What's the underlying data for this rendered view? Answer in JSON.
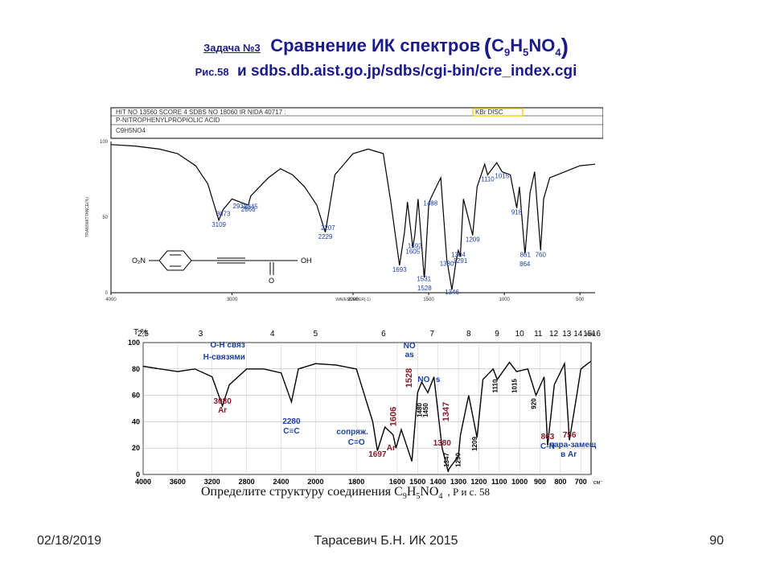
{
  "header": {
    "task_label": "Задача №3",
    "title": "Сравнение ИК спектров",
    "formula_open": "(",
    "formula_c": "C",
    "formula_c_sub": "9",
    "formula_h": "H",
    "formula_h_sub": "5",
    "formula_no": "NO",
    "formula_o_sub": "4",
    "formula_close": ")",
    "fig_label": "Рис.58",
    "source": "и sdbs.db.aist.go.jp/sdbs/cgi-bin/cre_index.cgi"
  },
  "sdbs_header": {
    "row1": "HIT NO 13560   SCORE  4    SDBS NO 18060    IR NIDA 40717 :",
    "row1_tag": "KBr DISC",
    "row2": "P-NITROPHENYLPROPIOLIC ACID",
    "row3": "C9H5NO4"
  },
  "footer": {
    "date": "02/18/2019",
    "author": "Тарасевич Б.Н.  ИК 2015",
    "page": "90"
  },
  "task_caption": {
    "text": "Определите структуру соединения C",
    "c_sub": "9",
    "h": "H",
    "h_sub": "5",
    "no": "NO",
    "o_sub": "4",
    "fig": ", Р и с. 58"
  },
  "structure": {
    "o2n": "O₂N",
    "oh": "OH",
    "o": "O"
  },
  "chart_data": [
    {
      "type": "line",
      "name_in_image": "SDBS IR spectrum",
      "xlabel": "WAVENUMBER(-1)",
      "ylabel": "TRANSMITTANCE(%)",
      "xlim": [
        4000,
        400
      ],
      "ylim": [
        0,
        100
      ],
      "x_tick_labels": [
        "4000",
        "3000",
        "2000",
        "1500",
        "1000",
        "500"
      ],
      "y_tick_labels": [
        "100",
        "50",
        "0"
      ],
      "color": "#000000",
      "label_color": "#1a3fa8",
      "points": [
        [
          4000,
          98
        ],
        [
          3800,
          97
        ],
        [
          3600,
          95
        ],
        [
          3450,
          92
        ],
        [
          3300,
          84
        ],
        [
          3200,
          72
        ],
        [
          3109,
          48
        ],
        [
          3073,
          55
        ],
        [
          3000,
          62
        ],
        [
          2934,
          60
        ],
        [
          2866,
          58
        ],
        [
          2845,
          64
        ],
        [
          2700,
          76
        ],
        [
          2600,
          82
        ],
        [
          2500,
          78
        ],
        [
          2400,
          70
        ],
        [
          2300,
          58
        ],
        [
          2229,
          40
        ],
        [
          2207,
          50
        ],
        [
          2150,
          78
        ],
        [
          2000,
          92
        ],
        [
          1900,
          95
        ],
        [
          1800,
          92
        ],
        [
          1750,
          60
        ],
        [
          1693,
          18
        ],
        [
          1660,
          40
        ],
        [
          1640,
          60
        ],
        [
          1605,
          30
        ],
        [
          1592,
          38
        ],
        [
          1570,
          62
        ],
        [
          1531,
          12
        ],
        [
          1528,
          10
        ],
        [
          1500,
          58
        ],
        [
          1488,
          62
        ],
        [
          1450,
          70
        ],
        [
          1420,
          76
        ],
        [
          1380,
          22
        ],
        [
          1350,
          4
        ],
        [
          1346,
          2
        ],
        [
          1320,
          20
        ],
        [
          1304,
          28
        ],
        [
          1291,
          24
        ],
        [
          1270,
          62
        ],
        [
          1209,
          38
        ],
        [
          1180,
          70
        ],
        [
          1130,
          85
        ],
        [
          1110,
          78
        ],
        [
          1050,
          86
        ],
        [
          1015,
          80
        ],
        [
          960,
          78
        ],
        [
          918,
          56
        ],
        [
          900,
          70
        ],
        [
          864,
          26
        ],
        [
          861,
          28
        ],
        [
          830,
          66
        ],
        [
          800,
          80
        ],
        [
          760,
          28
        ],
        [
          740,
          62
        ],
        [
          700,
          76
        ],
        [
          600,
          80
        ],
        [
          500,
          84
        ],
        [
          400,
          85
        ]
      ],
      "labels": [
        [
          "3109",
          3109
        ],
        [
          "3073",
          3073
        ],
        [
          "2934",
          2934
        ],
        [
          "2866",
          2866
        ],
        [
          "2845",
          2845
        ],
        [
          "2229",
          2229
        ],
        [
          "2207",
          2207
        ],
        [
          "1693",
          1693
        ],
        [
          "1605",
          1605
        ],
        [
          "1592",
          1592
        ],
        [
          "1531",
          1531
        ],
        [
          "1528",
          1528
        ],
        [
          "1488",
          1488
        ],
        [
          "1380",
          1380
        ],
        [
          "1346",
          1346
        ],
        [
          "1304",
          1304
        ],
        [
          "1291",
          1291
        ],
        [
          "1209",
          1209
        ],
        [
          "1110",
          1110
        ],
        [
          "1015",
          1015
        ],
        [
          "918",
          918
        ],
        [
          "861",
          861
        ],
        [
          "864",
          864
        ],
        [
          "760",
          760
        ]
      ]
    },
    {
      "type": "line",
      "name_in_image": "Textbook IR spectrum",
      "ylabel": "T %",
      "xlim": [
        4000,
        650
      ],
      "ylim": [
        0,
        100
      ],
      "x_tick_labels": [
        "4000",
        "3600",
        "3200",
        "2800",
        "2400",
        "2000",
        "1800",
        "1600",
        "1500",
        "1400",
        "1300",
        "1200",
        "1100",
        "1000",
        "900",
        "800",
        "700"
      ],
      "x_unit": "см⁻¹",
      "y_tick_labels": [
        "100",
        "80",
        "60",
        "40",
        "20",
        "0"
      ],
      "top_tick_labels": [
        "2,5",
        "3",
        "4",
        "5",
        "6",
        "7",
        "8",
        "9",
        "10",
        "11",
        "12",
        "13",
        "14",
        "15",
        "16"
      ],
      "top_unit": "мкм",
      "color": "#000000",
      "points": [
        [
          4000,
          82
        ],
        [
          3800,
          80
        ],
        [
          3600,
          78
        ],
        [
          3400,
          80
        ],
        [
          3200,
          74
        ],
        [
          3080,
          52
        ],
        [
          3000,
          68
        ],
        [
          2800,
          80
        ],
        [
          2600,
          80
        ],
        [
          2400,
          77
        ],
        [
          2280,
          55
        ],
        [
          2200,
          80
        ],
        [
          2000,
          84
        ],
        [
          1900,
          83
        ],
        [
          1800,
          80
        ],
        [
          1720,
          40
        ],
        [
          1697,
          18
        ],
        [
          1660,
          36
        ],
        [
          1620,
          30
        ],
        [
          1606,
          20
        ],
        [
          1580,
          34
        ],
        [
          1528,
          10
        ],
        [
          1500,
          62
        ],
        [
          1480,
          70
        ],
        [
          1450,
          62
        ],
        [
          1420,
          74
        ],
        [
          1380,
          20
        ],
        [
          1350,
          2
        ],
        [
          1347,
          4
        ],
        [
          1300,
          14
        ],
        [
          1290,
          30
        ],
        [
          1250,
          60
        ],
        [
          1209,
          28
        ],
        [
          1180,
          72
        ],
        [
          1130,
          80
        ],
        [
          1110,
          72
        ],
        [
          1050,
          85
        ],
        [
          1015,
          78
        ],
        [
          960,
          80
        ],
        [
          920,
          60
        ],
        [
          880,
          74
        ],
        [
          863,
          22
        ],
        [
          830,
          68
        ],
        [
          780,
          84
        ],
        [
          756,
          26
        ],
        [
          720,
          60
        ],
        [
          700,
          80
        ],
        [
          650,
          86
        ]
      ],
      "labels": [
        [
          "3080",
          3080
        ],
        [
          "2280",
          2280
        ],
        [
          "1697",
          1697
        ],
        [
          "1606",
          1606
        ],
        [
          "1528",
          1528
        ],
        [
          "1480",
          1480
        ],
        [
          "1450",
          1450
        ],
        [
          "1380",
          1380
        ],
        [
          "1347",
          1347
        ],
        [
          "1347",
          1347
        ],
        [
          "1290",
          1290
        ],
        [
          "1209",
          1209
        ],
        [
          "1110",
          1110
        ],
        [
          "1015",
          1015
        ],
        [
          "920",
          920
        ],
        [
          "863",
          863
        ],
        [
          "756",
          756
        ]
      ],
      "annotations": [
        {
          "text": "O-H связ",
          "color": "#1a3fa8"
        },
        {
          "text": "H-связями",
          "color": "#1a3fa8"
        },
        {
          "text": "Ar",
          "color": "#8a1a2a"
        },
        {
          "text": "C≡C",
          "color": "#1a3fa8"
        },
        {
          "text": "сопряж.",
          "color": "#1a3fa8"
        },
        {
          "text": "C=O",
          "color": "#1a3fa8"
        },
        {
          "text": "Ar",
          "color": "#8a1a2a"
        },
        {
          "text": "NO",
          "color": "#1a3fa8"
        },
        {
          "text": "as",
          "color": "#1a3fa8"
        },
        {
          "text": "NO",
          "color": "#1a3fa8"
        },
        {
          "text": "s",
          "color": "#1a3fa8"
        },
        {
          "text": "C-N",
          "color": "#1a3fa8"
        },
        {
          "text": "пара-замещ",
          "color": "#1a3fa8"
        },
        {
          "text": "в Ar",
          "color": "#1a3fa8"
        }
      ]
    }
  ]
}
